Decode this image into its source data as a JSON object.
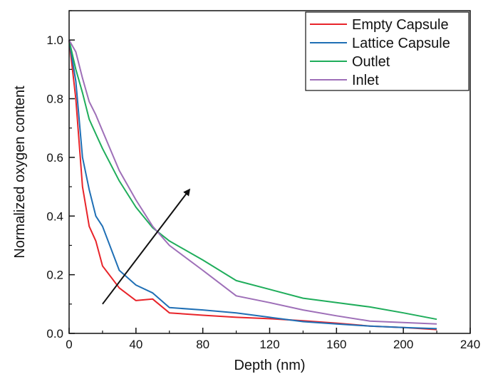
{
  "chart_data": {
    "type": "line",
    "title": "",
    "xlabel": "Depth (nm)",
    "ylabel": "Normalized oxygen content",
    "xlim": [
      0,
      240
    ],
    "ylim": [
      0,
      1.1
    ],
    "xticks": [
      0,
      40,
      80,
      120,
      160,
      200,
      240
    ],
    "xtick_labels": [
      "0",
      "40",
      "80",
      "120",
      "160",
      "200",
      "240"
    ],
    "yticks": [
      0.0,
      0.2,
      0.4,
      0.6,
      0.8,
      1.0
    ],
    "ytick_labels": [
      "0.0",
      "0.2",
      "0.4",
      "0.6",
      "0.8",
      "1.0"
    ],
    "grid": false,
    "legend_position": "top-right",
    "series": [
      {
        "name": "Empty Capsule",
        "color": "#e8242a",
        "points": [
          [
            0,
            1.0
          ],
          [
            4,
            0.8
          ],
          [
            8,
            0.5
          ],
          [
            12,
            0.365
          ],
          [
            16,
            0.315
          ],
          [
            20,
            0.23
          ],
          [
            30,
            0.155
          ],
          [
            40,
            0.112
          ],
          [
            50,
            0.117
          ],
          [
            60,
            0.07
          ],
          [
            80,
            0.062
          ],
          [
            100,
            0.055
          ],
          [
            120,
            0.05
          ],
          [
            140,
            0.043
          ],
          [
            160,
            0.035
          ],
          [
            180,
            0.025
          ],
          [
            200,
            0.02
          ],
          [
            220,
            0.013
          ]
        ]
      },
      {
        "name": "Lattice Capsule",
        "color": "#1f6fb5",
        "points": [
          [
            0,
            1.0
          ],
          [
            4,
            0.86
          ],
          [
            8,
            0.6
          ],
          [
            12,
            0.49
          ],
          [
            16,
            0.4
          ],
          [
            20,
            0.365
          ],
          [
            30,
            0.215
          ],
          [
            40,
            0.165
          ],
          [
            50,
            0.138
          ],
          [
            60,
            0.088
          ],
          [
            80,
            0.08
          ],
          [
            100,
            0.07
          ],
          [
            120,
            0.055
          ],
          [
            140,
            0.04
          ],
          [
            160,
            0.032
          ],
          [
            180,
            0.025
          ],
          [
            200,
            0.02
          ],
          [
            220,
            0.016
          ]
        ]
      },
      {
        "name": "Outlet",
        "color": "#1fad5b",
        "points": [
          [
            0,
            1.0
          ],
          [
            4,
            0.9
          ],
          [
            8,
            0.82
          ],
          [
            12,
            0.73
          ],
          [
            16,
            0.68
          ],
          [
            20,
            0.63
          ],
          [
            30,
            0.52
          ],
          [
            40,
            0.43
          ],
          [
            50,
            0.36
          ],
          [
            60,
            0.315
          ],
          [
            80,
            0.25
          ],
          [
            100,
            0.18
          ],
          [
            120,
            0.15
          ],
          [
            140,
            0.12
          ],
          [
            160,
            0.105
          ],
          [
            180,
            0.09
          ],
          [
            200,
            0.07
          ],
          [
            220,
            0.048
          ]
        ]
      },
      {
        "name": "Inlet",
        "color": "#9e6fb8",
        "points": [
          [
            0,
            1.0
          ],
          [
            4,
            0.96
          ],
          [
            8,
            0.87
          ],
          [
            12,
            0.79
          ],
          [
            16,
            0.745
          ],
          [
            20,
            0.69
          ],
          [
            30,
            0.555
          ],
          [
            40,
            0.455
          ],
          [
            50,
            0.365
          ],
          [
            60,
            0.3
          ],
          [
            80,
            0.215
          ],
          [
            100,
            0.128
          ],
          [
            120,
            0.105
          ],
          [
            140,
            0.08
          ],
          [
            160,
            0.06
          ],
          [
            180,
            0.042
          ],
          [
            200,
            0.037
          ],
          [
            220,
            0.032
          ]
        ]
      }
    ],
    "annotations": [
      {
        "type": "arrow",
        "from": [
          20,
          0.1
        ],
        "to": [
          72,
          0.49
        ],
        "color": "#111111"
      }
    ]
  }
}
